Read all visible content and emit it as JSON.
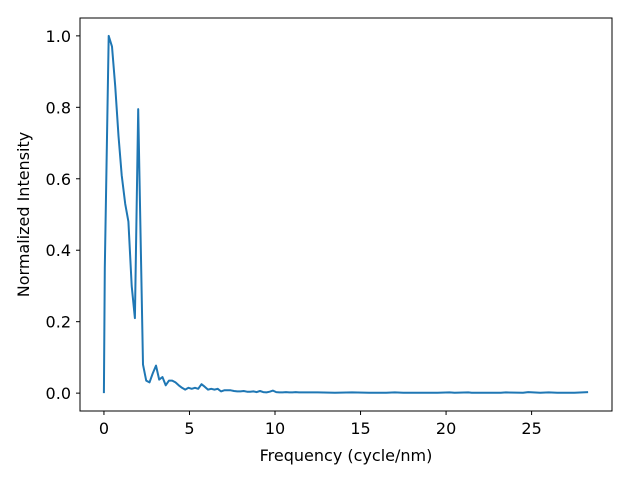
{
  "chart_data": {
    "type": "line",
    "title": "",
    "xlabel": "Frequency (cycle/nm)",
    "ylabel": "Normalized Intensity",
    "xlim": [
      -1.4,
      29.7
    ],
    "ylim": [
      -0.05,
      1.05
    ],
    "xticks": [
      0,
      5,
      10,
      15,
      20,
      25
    ],
    "yticks": [
      0.0,
      0.2,
      0.4,
      0.6,
      0.8,
      1.0
    ],
    "xtick_labels": [
      "0",
      "5",
      "10",
      "15",
      "20",
      "25"
    ],
    "ytick_labels": [
      "0.0",
      "0.2",
      "0.4",
      "0.6",
      "0.8",
      "1.0"
    ],
    "grid": false,
    "legend": "none",
    "series": [
      {
        "color": "#1f77b4",
        "x": [
          0.0,
          0.05,
          0.28,
          0.47,
          0.66,
          0.85,
          1.04,
          1.24,
          1.43,
          1.62,
          1.81,
          2.0,
          2.28,
          2.47,
          2.66,
          2.85,
          3.04,
          3.23,
          3.42,
          3.61,
          3.8,
          3.99,
          4.18,
          4.37,
          4.56,
          4.75,
          4.94,
          5.13,
          5.32,
          5.51,
          5.7,
          5.89,
          6.08,
          6.27,
          6.46,
          6.65,
          6.84,
          7.03,
          7.22,
          7.41,
          7.6,
          7.79,
          7.98,
          8.17,
          8.36,
          8.55,
          8.74,
          8.93,
          9.12,
          9.31,
          9.5,
          9.69,
          9.88,
          10.07,
          10.26,
          10.45,
          10.64,
          10.83,
          11.02,
          11.21,
          11.4,
          11.59,
          11.78,
          12.5,
          13.5,
          14.5,
          15.5,
          16.5,
          17.0,
          17.5,
          18.5,
          19.5,
          20.2,
          20.5,
          21.3,
          21.5,
          22.5,
          23.2,
          23.5,
          24.5,
          24.8,
          25.5,
          26.0,
          26.5,
          27.5,
          28.3
        ],
        "y": [
          0.0,
          0.35,
          1.0,
          0.97,
          0.86,
          0.72,
          0.61,
          0.53,
          0.48,
          0.3,
          0.21,
          0.795,
          0.08,
          0.035,
          0.03,
          0.055,
          0.077,
          0.038,
          0.045,
          0.022,
          0.035,
          0.035,
          0.03,
          0.022,
          0.015,
          0.01,
          0.015,
          0.012,
          0.015,
          0.012,
          0.025,
          0.018,
          0.01,
          0.012,
          0.01,
          0.012,
          0.005,
          0.008,
          0.008,
          0.008,
          0.006,
          0.005,
          0.005,
          0.006,
          0.004,
          0.004,
          0.005,
          0.003,
          0.006,
          0.003,
          0.002,
          0.004,
          0.007,
          0.003,
          0.002,
          0.002,
          0.003,
          0.002,
          0.002,
          0.003,
          0.002,
          0.002,
          0.002,
          0.002,
          0.001,
          0.002,
          0.001,
          0.001,
          0.002,
          0.001,
          0.001,
          0.001,
          0.002,
          0.001,
          0.002,
          0.001,
          0.001,
          0.001,
          0.002,
          0.001,
          0.003,
          0.001,
          0.002,
          0.001,
          0.001,
          0.003
        ]
      }
    ]
  }
}
